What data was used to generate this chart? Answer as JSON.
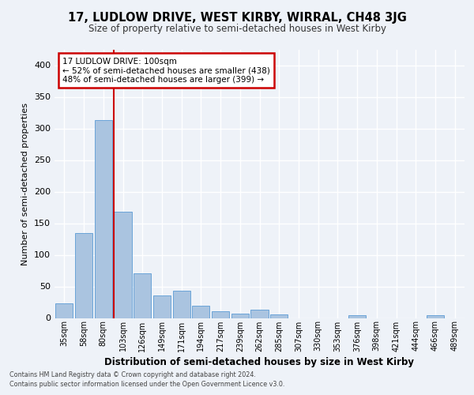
{
  "title": "17, LUDLOW DRIVE, WEST KIRBY, WIRRAL, CH48 3JG",
  "subtitle": "Size of property relative to semi-detached houses in West Kirby",
  "xlabel": "Distribution of semi-detached houses by size in West Kirby",
  "ylabel": "Number of semi-detached properties",
  "footer_line1": "Contains HM Land Registry data © Crown copyright and database right 2024.",
  "footer_line2": "Contains public sector information licensed under the Open Government Licence v3.0.",
  "categories": [
    "35sqm",
    "58sqm",
    "80sqm",
    "103sqm",
    "126sqm",
    "149sqm",
    "171sqm",
    "194sqm",
    "217sqm",
    "239sqm",
    "262sqm",
    "285sqm",
    "307sqm",
    "330sqm",
    "353sqm",
    "376sqm",
    "398sqm",
    "421sqm",
    "444sqm",
    "466sqm",
    "489sqm"
  ],
  "values": [
    23,
    135,
    313,
    168,
    71,
    36,
    43,
    19,
    11,
    7,
    13,
    6,
    0,
    0,
    0,
    4,
    0,
    0,
    0,
    5,
    0
  ],
  "bar_color": "#aac4e0",
  "bar_edge_color": "#5b9bd5",
  "property_label": "17 LUDLOW DRIVE: 100sqm",
  "pct_smaller": 52,
  "count_smaller": 438,
  "pct_larger": 48,
  "count_larger": 399,
  "vline_x_index": 3,
  "vline_color": "#cc0000",
  "annotation_box_color": "#cc0000",
  "ylim": [
    0,
    425
  ],
  "background_color": "#eef2f8",
  "grid_color": "#ffffff"
}
